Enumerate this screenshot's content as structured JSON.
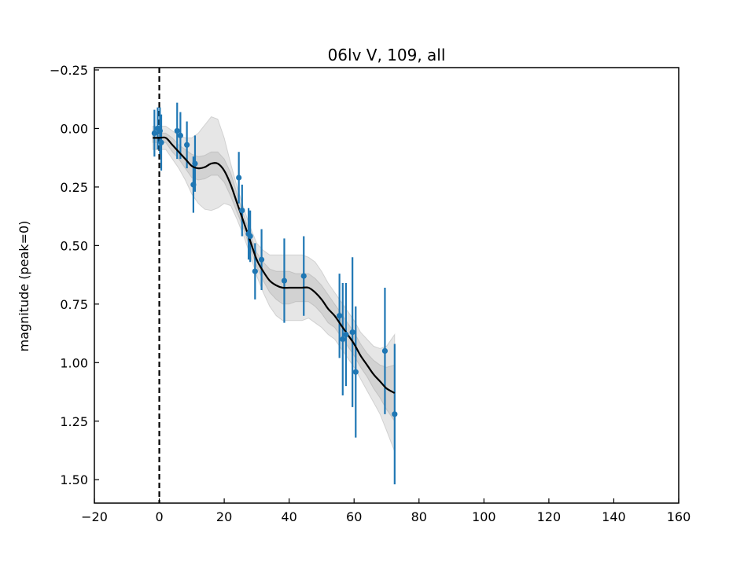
{
  "chart_data": {
    "type": "scatter",
    "title": "06lv V, 109, all",
    "xlabel": "",
    "ylabel": "magnitude (peak=0)",
    "xlim": [
      -20,
      160
    ],
    "ylim": [
      1.6,
      -0.26
    ],
    "y_inverted": true,
    "grid": false,
    "x_ticks": [
      -20,
      0,
      20,
      40,
      60,
      80,
      100,
      120,
      140,
      160
    ],
    "x_tick_labels": [
      "−20",
      "0",
      "20",
      "40",
      "60",
      "80",
      "100",
      "120",
      "140",
      "160"
    ],
    "y_ticks": [
      -0.25,
      0.0,
      0.25,
      0.5,
      0.75,
      1.0,
      1.25,
      1.5
    ],
    "y_tick_labels": [
      "−0.25",
      "0.00",
      "0.25",
      "0.50",
      "0.75",
      "1.00",
      "1.25",
      "1.50"
    ],
    "peak_line": {
      "x": 0,
      "style": "dashed",
      "color": "#000000"
    },
    "series": [
      {
        "kind": "points_with_errorbars",
        "color": "#1f77b4",
        "x": [
          -1.5,
          -0.5,
          0.2,
          0.6,
          5.5,
          6.5,
          8.5,
          10.5,
          11.0,
          24.5,
          25.5,
          27.5,
          28.0,
          29.5,
          31.5,
          38.5,
          44.5,
          55.5,
          56.5,
          57.5,
          59.5,
          60.5,
          69.5,
          72.5
        ],
        "y": [
          0.02,
          0.0,
          0.01,
          0.06,
          0.01,
          0.03,
          0.07,
          0.24,
          0.15,
          0.21,
          0.35,
          0.45,
          0.46,
          0.61,
          0.56,
          0.65,
          0.63,
          0.8,
          0.9,
          0.88,
          0.87,
          1.04,
          0.95,
          1.22
        ],
        "yerr": [
          0.1,
          0.09,
          0.1,
          0.12,
          0.12,
          0.1,
          0.1,
          0.12,
          0.12,
          0.11,
          0.11,
          0.11,
          0.11,
          0.12,
          0.13,
          0.18,
          0.17,
          0.18,
          0.24,
          0.22,
          0.32,
          0.28,
          0.27,
          0.3
        ]
      },
      {
        "kind": "fit_curve",
        "color": "#000000",
        "x": [
          -2,
          0,
          2,
          4,
          6,
          8,
          10,
          12,
          14,
          16,
          18,
          20,
          22,
          24,
          26,
          28,
          30,
          32,
          34,
          36,
          38,
          40,
          42,
          44,
          46,
          48,
          50,
          52,
          54,
          56,
          58,
          60,
          62,
          64,
          66,
          68,
          70,
          72.5
        ],
        "y": [
          0.04,
          0.04,
          0.04,
          0.07,
          0.1,
          0.13,
          0.16,
          0.17,
          0.165,
          0.15,
          0.15,
          0.18,
          0.24,
          0.32,
          0.4,
          0.48,
          0.56,
          0.61,
          0.65,
          0.67,
          0.68,
          0.68,
          0.68,
          0.68,
          0.68,
          0.7,
          0.73,
          0.77,
          0.8,
          0.84,
          0.88,
          0.92,
          0.97,
          1.01,
          1.05,
          1.08,
          1.11,
          1.13
        ],
        "band_1sigma": [
          0.02,
          0.02,
          0.02,
          0.03,
          0.03,
          0.04,
          0.05,
          0.05,
          0.05,
          0.05,
          0.05,
          0.05,
          0.05,
          0.04,
          0.03,
          0.03,
          0.03,
          0.04,
          0.05,
          0.06,
          0.07,
          0.07,
          0.06,
          0.06,
          0.06,
          0.06,
          0.06,
          0.06,
          0.05,
          0.05,
          0.05,
          0.05,
          0.05,
          0.05,
          0.06,
          0.07,
          0.09,
          0.12
        ],
        "band_2sigma": [
          0.05,
          0.05,
          0.05,
          0.06,
          0.07,
          0.09,
          0.12,
          0.15,
          0.18,
          0.2,
          0.19,
          0.14,
          0.09,
          0.07,
          0.06,
          0.06,
          0.07,
          0.09,
          0.11,
          0.13,
          0.14,
          0.14,
          0.14,
          0.14,
          0.13,
          0.13,
          0.12,
          0.11,
          0.1,
          0.1,
          0.1,
          0.1,
          0.1,
          0.11,
          0.12,
          0.14,
          0.18,
          0.25
        ]
      }
    ]
  }
}
